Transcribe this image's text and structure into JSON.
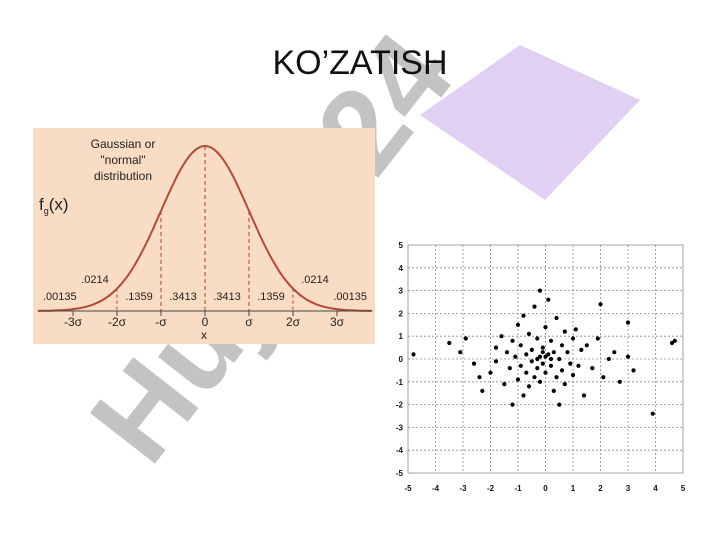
{
  "slide": {
    "title": "KO’ZATISH",
    "watermark": "Hujjat 24"
  },
  "colors": {
    "panel_bg": "#f9dcc4",
    "curve": "#b24a35",
    "guides": "#a84030",
    "scatter_point": "#000000",
    "grid": "#888888",
    "watermark_gray": "#b8b8b8",
    "watermark_violet": "#dcc8f2"
  },
  "chart_data": [
    {
      "type": "line",
      "title": "",
      "annotation": [
        "Gaussian or",
        "\"normal\"",
        "distribution"
      ],
      "ylabel": "fg(x)",
      "ylabel_main": "f",
      "ylabel_sub": "g",
      "ylabel_tail": "(x)",
      "xlabel": "x",
      "ticks": [
        {
          "x": -3,
          "label": "-3σ"
        },
        {
          "x": -2,
          "label": "-2σ"
        },
        {
          "x": -1,
          "label": "-σ"
        },
        {
          "x": 0,
          "label": "0"
        },
        {
          "x": 1,
          "label": "σ"
        },
        {
          "x": 2,
          "label": "2σ"
        },
        {
          "x": 3,
          "label": "3σ"
        }
      ],
      "xlim": [
        -3.8,
        3.8
      ],
      "region_labels": [
        {
          "x": -3.55,
          "label": ".00135"
        },
        {
          "x": -2.5,
          "label": ".1359",
          "note": "unused"
        }
      ],
      "probabilities": [
        {
          "from": -3.6,
          "to": -3,
          "label": ".00135"
        },
        {
          "from": -3,
          "to": -2,
          "label": ".0214"
        },
        {
          "from": -2,
          "to": -1,
          "label": ".1359"
        },
        {
          "from": -1,
          "to": 0,
          "label": ".3413"
        },
        {
          "from": 0,
          "to": 1,
          "label": ".3413"
        },
        {
          "from": 1,
          "to": 2,
          "label": ".1359"
        },
        {
          "from": 2,
          "to": 3,
          "label": ".0214"
        },
        {
          "from": 3,
          "to": 3.6,
          "label": ".00135"
        }
      ],
      "guides": [
        -2,
        -1,
        0,
        1,
        2
      ]
    },
    {
      "type": "scatter",
      "xlim": [
        -5,
        5
      ],
      "ylim": [
        -5,
        5
      ],
      "xticks": [
        "-5",
        "-4",
        "-3",
        "-2",
        "-1",
        "0",
        "1",
        "2",
        "3",
        "4",
        "5"
      ],
      "yticks": [
        "5",
        "4",
        "3",
        "2",
        "1",
        "0",
        "-1",
        "-2",
        "-3",
        "-4",
        "-5"
      ],
      "grid": true,
      "points": [
        [
          -4.8,
          0.2
        ],
        [
          -3.5,
          0.7
        ],
        [
          -3.1,
          0.3
        ],
        [
          -2.9,
          0.9
        ],
        [
          -2.6,
          -0.2
        ],
        [
          -2.4,
          -0.8
        ],
        [
          -2.3,
          -1.4
        ],
        [
          -2.0,
          -0.6
        ],
        [
          -1.8,
          -0.1
        ],
        [
          -1.8,
          0.5
        ],
        [
          -1.6,
          1.0
        ],
        [
          -1.5,
          -1.1
        ],
        [
          -1.4,
          0.3
        ],
        [
          -1.3,
          -0.4
        ],
        [
          -1.2,
          0.8
        ],
        [
          -1.2,
          -2.0
        ],
        [
          -1.1,
          0.1
        ],
        [
          -1.0,
          -0.9
        ],
        [
          -1.0,
          1.5
        ],
        [
          -0.9,
          0.6
        ],
        [
          -0.9,
          -0.3
        ],
        [
          -0.8,
          1.9
        ],
        [
          -0.8,
          -1.6
        ],
        [
          -0.7,
          0.2
        ],
        [
          -0.7,
          -0.6
        ],
        [
          -0.6,
          1.1
        ],
        [
          -0.6,
          -1.2
        ],
        [
          -0.5,
          0.4
        ],
        [
          -0.5,
          -0.1
        ],
        [
          -0.4,
          2.3
        ],
        [
          -0.4,
          -0.8
        ],
        [
          -0.3,
          0.9
        ],
        [
          -0.3,
          -0.4
        ],
        [
          -0.2,
          0.1
        ],
        [
          -0.2,
          3.0
        ],
        [
          -0.2,
          -1.0
        ],
        [
          -0.1,
          0.5
        ],
        [
          -0.1,
          -0.2
        ],
        [
          0.0,
          1.4
        ],
        [
          0.0,
          -0.6
        ],
        [
          0.1,
          0.2
        ],
        [
          0.1,
          2.6
        ],
        [
          0.2,
          -0.3
        ],
        [
          0.2,
          0.8
        ],
        [
          0.3,
          -1.4
        ],
        [
          0.3,
          0.3
        ],
        [
          0.4,
          1.8
        ],
        [
          0.4,
          -0.8
        ],
        [
          0.5,
          0.0
        ],
        [
          0.5,
          -2.0
        ],
        [
          0.6,
          0.6
        ],
        [
          0.6,
          -0.5
        ],
        [
          0.7,
          1.2
        ],
        [
          0.7,
          -1.1
        ],
        [
          0.8,
          0.3
        ],
        [
          0.9,
          -0.2
        ],
        [
          1.0,
          0.9
        ],
        [
          1.0,
          -0.7
        ],
        [
          1.1,
          1.3
        ],
        [
          1.2,
          -0.3
        ],
        [
          1.3,
          0.4
        ],
        [
          1.4,
          -1.6
        ],
        [
          1.5,
          0.6
        ],
        [
          1.7,
          -0.4
        ],
        [
          1.9,
          0.9
        ],
        [
          2.0,
          2.4
        ],
        [
          2.1,
          -0.8
        ],
        [
          2.3,
          0.0
        ],
        [
          2.5,
          0.3
        ],
        [
          2.7,
          -1.0
        ],
        [
          3.0,
          1.6
        ],
        [
          3.0,
          0.1
        ],
        [
          3.2,
          -0.5
        ],
        [
          3.9,
          -2.4
        ],
        [
          4.6,
          0.7
        ],
        [
          4.7,
          0.8
        ],
        [
          -0.3,
          0.0
        ],
        [
          0.0,
          0.1
        ],
        [
          0.2,
          0.0
        ],
        [
          -0.1,
          0.3
        ]
      ]
    }
  ]
}
